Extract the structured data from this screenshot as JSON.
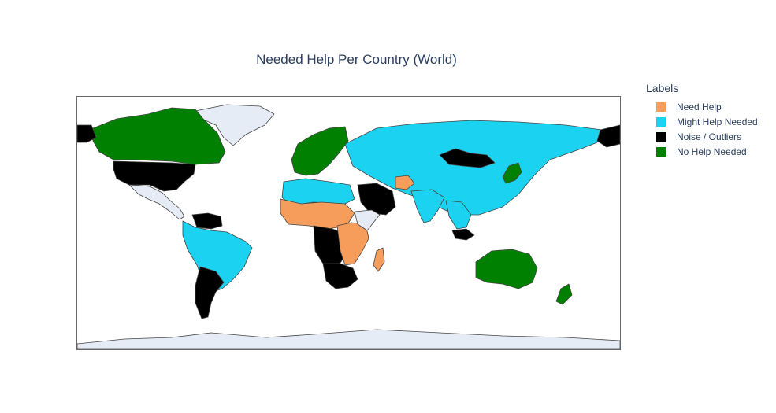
{
  "title": "Needed Help Per Country (World)",
  "legend": {
    "title": "Labels",
    "items": [
      {
        "label": "Need Help",
        "color": "#f79d5c"
      },
      {
        "label": "Might Help Needed",
        "color": "#1bd3f1"
      },
      {
        "label": "Noise / Outliers",
        "color": "#000000"
      },
      {
        "label": "No Help Needed",
        "color": "#008000"
      }
    ]
  },
  "map": {
    "land_no_data_color": "#e5ecf6",
    "border_color": "#444444",
    "regions": [
      {
        "name": "Canada",
        "category": "No Help Needed"
      },
      {
        "name": "United States",
        "category": "Noise / Outliers"
      },
      {
        "name": "Greenland",
        "category": "no-data"
      },
      {
        "name": "Mexico & Central America",
        "category": "no-data"
      },
      {
        "name": "Venezuela",
        "category": "Noise / Outliers"
      },
      {
        "name": "South America",
        "category": "Might Help Needed"
      },
      {
        "name": "Argentina",
        "category": "Noise / Outliers"
      },
      {
        "name": "Russia & Central Asia",
        "category": "Might Help Needed"
      },
      {
        "name": "Mongolia",
        "category": "Noise / Outliers"
      },
      {
        "name": "Western & Northern Europe",
        "category": "No Help Needed"
      },
      {
        "name": "Sahel Africa",
        "category": "Need Help"
      },
      {
        "name": "East Africa",
        "category": "Need Help"
      },
      {
        "name": "Madagascar",
        "category": "Need Help"
      },
      {
        "name": "Afghanistan",
        "category": "Need Help"
      },
      {
        "name": "Southern Africa",
        "category": "Noise / Outliers"
      },
      {
        "name": "Saudi Arabia",
        "category": "Noise / Outliers"
      },
      {
        "name": "Australia",
        "category": "No Help Needed"
      },
      {
        "name": "New Zealand",
        "category": "No Help Needed"
      },
      {
        "name": "Japan",
        "category": "No Help Needed"
      },
      {
        "name": "Antarctica",
        "category": "no-data"
      }
    ]
  }
}
